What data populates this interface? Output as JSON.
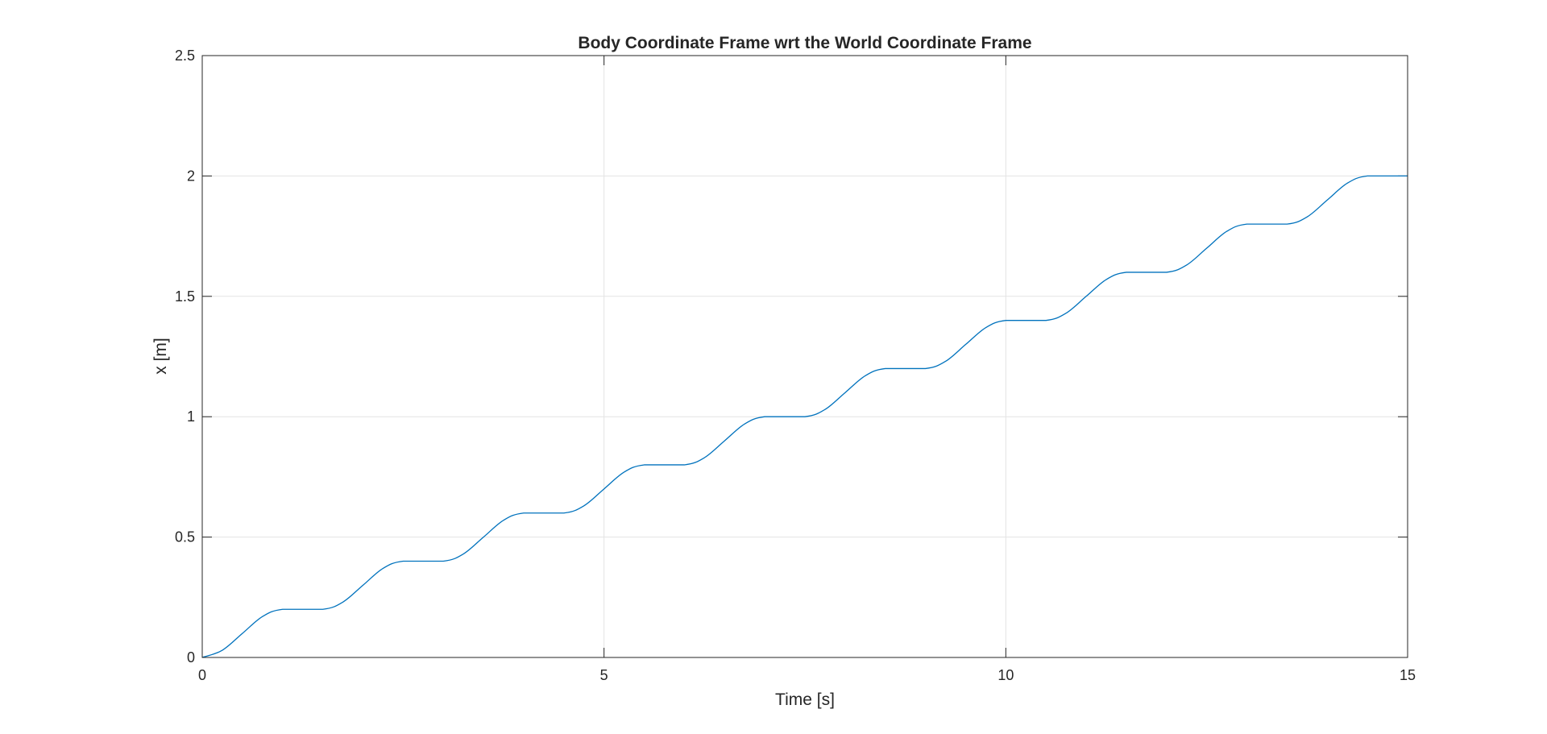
{
  "chart_data": {
    "type": "line",
    "title": "Body Coordinate Frame wrt the World Coordinate Frame",
    "xlabel": "Time [s]",
    "ylabel": "x [m]",
    "xlim": [
      0,
      15
    ],
    "ylim": [
      0,
      2.5
    ],
    "xticks": [
      0,
      5,
      10,
      15
    ],
    "yticks": [
      0,
      0.5,
      1,
      1.5,
      2,
      2.5
    ],
    "xtick_labels": [
      "0",
      "5",
      "10",
      "15"
    ],
    "ytick_labels": [
      "0",
      "0.5",
      "1",
      "1.5",
      "2",
      "2.5"
    ],
    "grid": true,
    "legend": "none",
    "line_color": "#0072BD",
    "series": [
      {
        "x": [
          0,
          0.25,
          0.5,
          0.75,
          1,
          1.5,
          1.75,
          2,
          2.25,
          2.5,
          3,
          3.25,
          3.5,
          3.75,
          4,
          4.5,
          4.75,
          5,
          5.25,
          5.5,
          6,
          6.25,
          6.5,
          6.75,
          7,
          7.5,
          7.75,
          8,
          8.25,
          8.5,
          9,
          9.25,
          9.5,
          9.75,
          10,
          10.5,
          10.75,
          11,
          11.25,
          11.5,
          12,
          12.25,
          12.5,
          12.75,
          13,
          13.5,
          13.75,
          14,
          14.25,
          14.5,
          15
        ],
        "y": [
          0,
          0.03,
          0.1,
          0.17,
          0.2,
          0.2,
          0.23,
          0.3,
          0.37,
          0.4,
          0.4,
          0.43,
          0.5,
          0.57,
          0.6,
          0.6,
          0.63,
          0.7,
          0.77,
          0.8,
          0.8,
          0.83,
          0.9,
          0.97,
          1.0,
          1.0,
          1.03,
          1.1,
          1.17,
          1.2,
          1.2,
          1.23,
          1.3,
          1.37,
          1.4,
          1.4,
          1.43,
          1.5,
          1.57,
          1.6,
          1.6,
          1.63,
          1.7,
          1.77,
          1.8,
          1.8,
          1.83,
          1.9,
          1.97,
          2.0,
          2.0
        ]
      }
    ]
  }
}
